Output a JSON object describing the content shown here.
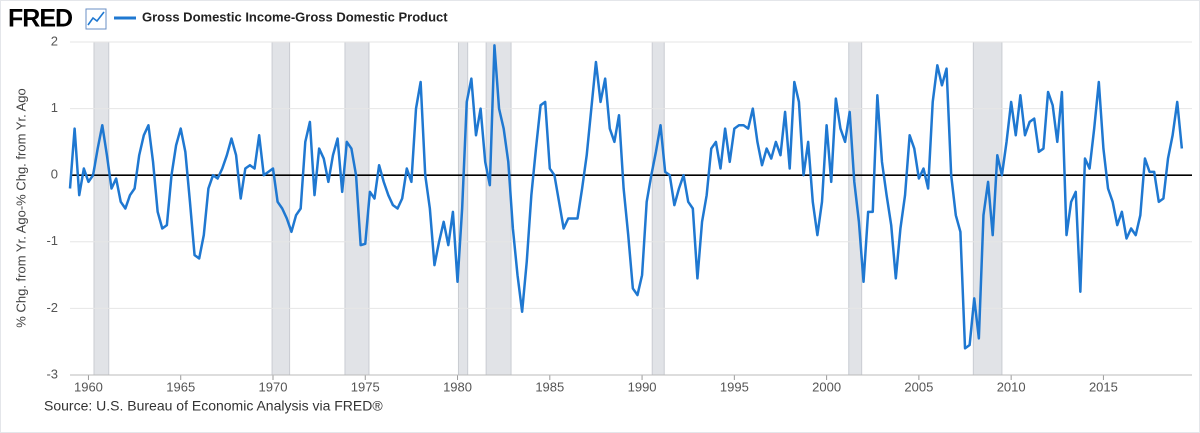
{
  "chart_data": {
    "type": "line",
    "logo": "FRED",
    "ylabel": "% Chg. from Yr. Ago-% Chg. from Yr. Ago",
    "source": "Source: U.S. Bureau of Economic Analysis via FRED®",
    "grid": true,
    "xlim": [
      1959,
      2019.8
    ],
    "ylim": [
      -3,
      2
    ],
    "xticks": [
      1960,
      1965,
      1970,
      1975,
      1980,
      1985,
      1990,
      1995,
      2000,
      2005,
      2010,
      2015
    ],
    "yticks": [
      -3,
      -2,
      -1,
      0,
      1,
      2
    ],
    "recessions": [
      [
        1960.3,
        1961.1
      ],
      [
        1969.95,
        1970.9
      ],
      [
        1973.9,
        1975.2
      ],
      [
        1980.05,
        1980.55
      ],
      [
        1981.55,
        1982.9
      ],
      [
        1990.55,
        1991.2
      ],
      [
        2001.2,
        2001.9
      ],
      [
        2007.95,
        2009.5
      ]
    ],
    "x": [
      1959,
      1959.25,
      1959.5,
      1959.75,
      1960,
      1960.25,
      1960.5,
      1960.75,
      1961,
      1961.25,
      1961.5,
      1961.75,
      1962,
      1962.25,
      1962.5,
      1962.75,
      1963,
      1963.25,
      1963.5,
      1963.75,
      1964,
      1964.25,
      1964.5,
      1964.75,
      1965,
      1965.25,
      1965.5,
      1965.75,
      1966,
      1966.25,
      1966.5,
      1966.75,
      1967,
      1967.25,
      1967.5,
      1967.75,
      1968,
      1968.25,
      1968.5,
      1968.75,
      1969,
      1969.25,
      1969.5,
      1969.75,
      1970,
      1970.25,
      1970.5,
      1970.75,
      1971,
      1971.25,
      1971.5,
      1971.75,
      1972,
      1972.25,
      1972.5,
      1972.75,
      1973,
      1973.25,
      1973.5,
      1973.75,
      1974,
      1974.25,
      1974.5,
      1974.75,
      1975,
      1975.25,
      1975.5,
      1975.75,
      1976,
      1976.25,
      1976.5,
      1976.75,
      1977,
      1977.25,
      1977.5,
      1977.75,
      1978,
      1978.25,
      1978.5,
      1978.75,
      1979,
      1979.25,
      1979.5,
      1979.75,
      1980,
      1980.25,
      1980.5,
      1980.75,
      1981,
      1981.25,
      1981.5,
      1981.75,
      1982,
      1982.25,
      1982.5,
      1982.75,
      1983,
      1983.25,
      1983.5,
      1983.75,
      1984,
      1984.25,
      1984.5,
      1984.75,
      1985,
      1985.25,
      1985.5,
      1985.75,
      1986,
      1986.25,
      1986.5,
      1986.75,
      1987,
      1987.25,
      1987.5,
      1987.75,
      1988,
      1988.25,
      1988.5,
      1988.75,
      1989,
      1989.25,
      1989.5,
      1989.75,
      1990,
      1990.25,
      1990.5,
      1990.75,
      1991,
      1991.25,
      1991.5,
      1991.75,
      1992,
      1992.25,
      1992.5,
      1992.75,
      1993,
      1993.25,
      1993.5,
      1993.75,
      1994,
      1994.25,
      1994.5,
      1994.75,
      1995,
      1995.25,
      1995.5,
      1995.75,
      1996,
      1996.25,
      1996.5,
      1996.75,
      1997,
      1997.25,
      1997.5,
      1997.75,
      1998,
      1998.25,
      1998.5,
      1998.75,
      1999,
      1999.25,
      1999.5,
      1999.75,
      2000,
      2000.25,
      2000.5,
      2000.75,
      2001,
      2001.25,
      2001.5,
      2001.75,
      2002,
      2002.25,
      2002.5,
      2002.75,
      2003,
      2003.25,
      2003.5,
      2003.75,
      2004,
      2004.25,
      2004.5,
      2004.75,
      2005,
      2005.25,
      2005.5,
      2005.75,
      2006,
      2006.25,
      2006.5,
      2006.75,
      2007,
      2007.25,
      2007.5,
      2007.75,
      2008,
      2008.25,
      2008.5,
      2008.75,
      2009,
      2009.25,
      2009.5,
      2009.75,
      2010,
      2010.25,
      2010.5,
      2010.75,
      2011,
      2011.25,
      2011.5,
      2011.75,
      2012,
      2012.25,
      2012.5,
      2012.75,
      2013,
      2013.25,
      2013.5,
      2013.75,
      2014,
      2014.25,
      2014.5,
      2014.75,
      2015,
      2015.25,
      2015.5,
      2015.75,
      2016,
      2016.25,
      2016.5,
      2016.75,
      2017,
      2017.25,
      2017.5,
      2017.75,
      2018,
      2018.25,
      2018.5,
      2018.75,
      2019,
      2019.25
    ],
    "series": [
      {
        "name": "Gross Domestic Income-Gross Domestic Product",
        "color": "#1f78d1",
        "values": [
          -0.2,
          0.7,
          -0.3,
          0.1,
          -0.1,
          0,
          0.4,
          0.75,
          0.3,
          -0.2,
          -0.05,
          -0.4,
          -0.5,
          -0.3,
          -0.2,
          0.3,
          0.6,
          0.75,
          0.2,
          -0.55,
          -0.8,
          -0.75,
          0,
          0.45,
          0.7,
          0.35,
          -0.4,
          -1.2,
          -1.25,
          -0.9,
          -0.2,
          0,
          -0.05,
          0.1,
          0.3,
          0.55,
          0.3,
          -0.35,
          0.1,
          0.15,
          0.1,
          0.6,
          0,
          0.05,
          0.1,
          -0.4,
          -0.5,
          -0.65,
          -0.85,
          -0.6,
          -0.5,
          0.5,
          0.8,
          -0.3,
          0.4,
          0.25,
          -0.1,
          0.3,
          0.55,
          -0.25,
          0.5,
          0.4,
          0,
          -1.05,
          -1.03,
          -0.25,
          -0.35,
          0.15,
          -0.1,
          -0.3,
          -0.45,
          -0.5,
          -0.35,
          0.1,
          -0.1,
          1.0,
          1.4,
          0,
          -0.5,
          -1.35,
          -1.0,
          -0.7,
          -1.05,
          -0.55,
          -1.6,
          -0.5,
          1.1,
          1.45,
          0.6,
          1.0,
          0.2,
          -0.15,
          1.95,
          1.0,
          0.7,
          0.2,
          -0.8,
          -1.5,
          -2.05,
          -1.3,
          -0.3,
          0.4,
          1.05,
          1.1,
          0.1,
          0,
          -0.4,
          -0.8,
          -0.65,
          -0.65,
          -0.65,
          -0.2,
          0.3,
          1.0,
          1.7,
          1.1,
          1.45,
          0.7,
          0.5,
          0.9,
          -0.2,
          -0.9,
          -1.7,
          -1.8,
          -1.5,
          -0.4,
          0,
          0.35,
          0.75,
          0.05,
          0,
          -0.45,
          -0.2,
          0,
          -0.4,
          -0.5,
          -1.55,
          -0.7,
          -0.3,
          0.4,
          0.5,
          0.1,
          0.7,
          0.2,
          0.7,
          0.75,
          0.75,
          0.7,
          1.0,
          0.5,
          0.15,
          0.4,
          0.25,
          0.5,
          0.3,
          0.95,
          0.1,
          1.4,
          1.1,
          0,
          0.5,
          -0.4,
          -0.9,
          -0.4,
          0.75,
          -0.1,
          1.15,
          0.7,
          0.5,
          0.95,
          -0.1,
          -0.7,
          -1.6,
          -0.55,
          -0.55,
          1.2,
          0.2,
          -0.3,
          -0.75,
          -1.55,
          -0.8,
          -0.3,
          0.6,
          0.4,
          -0.05,
          0.1,
          -0.2,
          1.1,
          1.65,
          1.35,
          1.6,
          0,
          -0.6,
          -0.85,
          -2.6,
          -2.55,
          -1.85,
          -2.45,
          -0.6,
          -0.1,
          -0.9,
          0.3,
          0,
          0.5,
          1.1,
          0.6,
          1.2,
          0.6,
          0.8,
          0.85,
          0.35,
          0.4,
          1.25,
          1.05,
          0.5,
          1.25,
          -0.9,
          -0.4,
          -0.25,
          -1.75,
          0.25,
          0.1,
          0.7,
          1.4,
          0.4,
          -0.2,
          -0.4,
          -0.75,
          -0.55,
          -0.95,
          -0.8,
          -0.9,
          -0.6,
          0.25,
          0.05,
          0.05,
          -0.4,
          -0.35,
          0.25,
          0.6,
          1.1,
          0.4
        ]
      }
    ]
  }
}
